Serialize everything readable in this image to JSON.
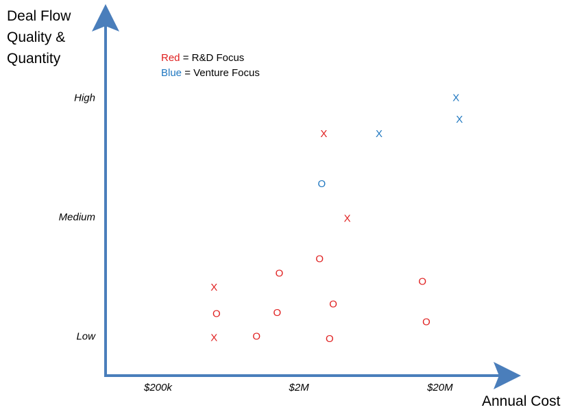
{
  "chart_data": {
    "type": "scatter",
    "ylabel": "Deal Flow\nQuality &\nQuantity",
    "xlabel": "Annual Cost",
    "x_scale": "log",
    "x_ticks": [
      {
        "value": 200000,
        "label": "$200k"
      },
      {
        "value": 2000000,
        "label": "$2M"
      },
      {
        "value": 20000000,
        "label": "$20M"
      }
    ],
    "y_ticks": [
      {
        "value": 1,
        "label": "Low"
      },
      {
        "value": 2,
        "label": "Medium"
      },
      {
        "value": 3,
        "label": "High"
      }
    ],
    "xlim": [
      85000,
      60000000
    ],
    "ylim": [
      0.67,
      3.67
    ],
    "legend": [
      {
        "color_word": "Red",
        "rest": " = R&D Focus",
        "color": "#e02020"
      },
      {
        "color_word": "Blue",
        "rest": " = Venture Focus",
        "color": "#1f77c0"
      }
    ],
    "colors": {
      "red": "#e02020",
      "blue": "#1f77c0",
      "axis": "#4a7ebb"
    },
    "points": [
      {
        "x": 500000,
        "y": 1.41,
        "marker": "X",
        "color": "red"
      },
      {
        "x": 520000,
        "y": 1.19,
        "marker": "O",
        "color": "red"
      },
      {
        "x": 500000,
        "y": 0.99,
        "marker": "X",
        "color": "red"
      },
      {
        "x": 1000000,
        "y": 1.0,
        "marker": "O",
        "color": "red"
      },
      {
        "x": 1400000,
        "y": 1.2,
        "marker": "O",
        "color": "red"
      },
      {
        "x": 1450000,
        "y": 1.53,
        "marker": "O",
        "color": "red"
      },
      {
        "x": 2800000,
        "y": 1.65,
        "marker": "O",
        "color": "red"
      },
      {
        "x": 3000000,
        "y": 2.7,
        "marker": "X",
        "color": "red"
      },
      {
        "x": 3500000,
        "y": 1.27,
        "marker": "O",
        "color": "red"
      },
      {
        "x": 3300000,
        "y": 0.98,
        "marker": "O",
        "color": "red"
      },
      {
        "x": 4400000,
        "y": 1.99,
        "marker": "X",
        "color": "red"
      },
      {
        "x": 15000000,
        "y": 1.46,
        "marker": "O",
        "color": "red"
      },
      {
        "x": 16000000,
        "y": 1.12,
        "marker": "O",
        "color": "red"
      },
      {
        "x": 2900000,
        "y": 2.28,
        "marker": "O",
        "color": "blue"
      },
      {
        "x": 7400000,
        "y": 2.7,
        "marker": "X",
        "color": "blue"
      },
      {
        "x": 26000000,
        "y": 3.0,
        "marker": "X",
        "color": "blue"
      },
      {
        "x": 27500000,
        "y": 2.82,
        "marker": "X",
        "color": "blue"
      }
    ]
  }
}
